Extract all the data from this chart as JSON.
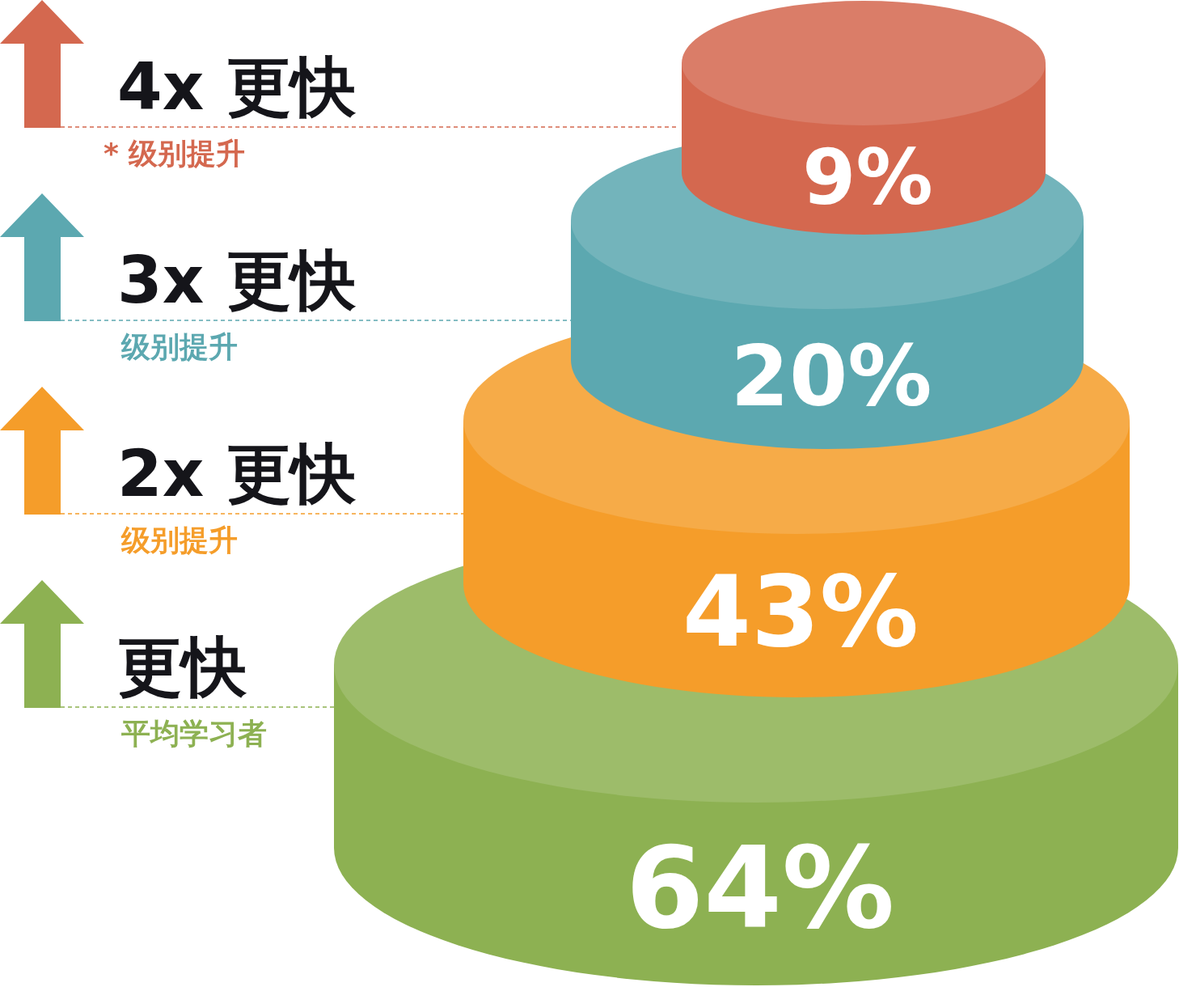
{
  "chart_data": {
    "type": "other",
    "categories": [
      "4x 更快",
      "3x 更快",
      "2x 更快",
      "更快"
    ],
    "values": [
      9,
      20,
      43,
      64
    ],
    "value_labels": [
      "9%",
      "20%",
      "43%",
      "64%"
    ],
    "colors": [
      "#d4684f",
      "#5ca8b0",
      "#f59d2a",
      "#8db152"
    ],
    "annotations": [
      "* 级别提升",
      "级别提升",
      "级别提升",
      "平均学习者"
    ]
  }
}
